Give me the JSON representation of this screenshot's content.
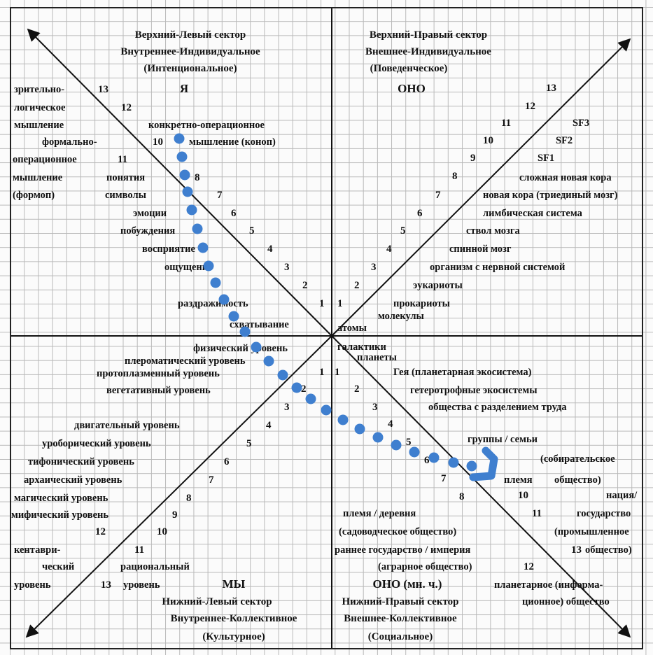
{
  "colors": {
    "ink": "#111111",
    "dots": "#3f7fcf",
    "grid": "#b9b9b9"
  },
  "sectors": {
    "ul": {
      "line1": "Верхний-Левый сектор",
      "line2": "Внутреннее-Индивидуальное",
      "line3": "(Интенциональное)",
      "pronoun": "Я"
    },
    "ur": {
      "line1": "Верхний-Правый сектор",
      "line2": "Внешнее-Индивидуальное",
      "line3": "(Поведенческое)",
      "pronoun": "ОНО"
    },
    "ll": {
      "line1": "Нижний-Левый сектор",
      "line2": "Внутреннее-Коллективное",
      "line3": "(Культурное)",
      "pronoun": "МЫ"
    },
    "lr": {
      "line1": "Нижний-Правый сектор",
      "line2": "Внешнее-Коллективное",
      "line3": "(Социальное)",
      "pronoun": "ОНО (мн. ч.)"
    }
  },
  "ul_labels": {
    "vision1": "зрительно-",
    "vision2": "логическое",
    "vision3": "мышление",
    "formop1": "формально-",
    "formop2": "операционное",
    "formop3": "мышление",
    "formop4": "(формоп)",
    "concop1": "конкретно-операционное",
    "concop2": "мышление (коноп)",
    "concepts": "понятия",
    "symbols": "символы",
    "emotions": "эмоции",
    "impulses": "побуждения",
    "perception": "восприятие",
    "sensation": "ощущение",
    "irritability": "раздражимость",
    "prehension": "схватывание"
  },
  "ur_labels": {
    "sf3": "SF3",
    "sf2": "SF2",
    "sf1": "SF1",
    "neocortex_complex": "сложная новая кора",
    "neocortex": "новая кора (триединый мозг)",
    "limbic": "лимбическая система",
    "brainstem": "ствол мозга",
    "spinal": "спинной мозг",
    "organism": "организм с нервной системой",
    "eukaryotes": "эукариоты",
    "prokaryotes": "прокариоты",
    "molecules": "молекулы",
    "atoms": "атомы"
  },
  "ll_labels": {
    "physical": "физический уровень",
    "pleromatic": "плероматический уровень",
    "protoplasmic": "протоплазменный уровень",
    "vegetative": "вегетативный уровень",
    "locomotive": "двигательный уровень",
    "uroboric": "уроборический уровень",
    "typhonic": "тифонический уровень",
    "archaic": "архаический уровень",
    "magic": "магический уровень",
    "mythic": "мифический уровень",
    "centaur1": "кентаври-",
    "centaur2": "ческий",
    "centaur3": "уровень",
    "rational1": "рациональный",
    "rational2": "уровень"
  },
  "lr_labels": {
    "galaxies": "галактики",
    "planets": "планеты",
    "gaia": "Гея (планетарная экосистема)",
    "hetero1": "гетеротрофные экосистемы",
    "hetero2": "общества с разделением труда",
    "groups": "группы / семьи",
    "forager1": "(собирательское",
    "tribe": "племя",
    "forager2": "общество)",
    "village1": "племя / деревня",
    "village2": "(садоводческое общество)",
    "nation1": "нация/",
    "nation2": "государство",
    "nation3": "(промышленное",
    "nation4": "общество)",
    "empire1": "раннее государство / империя",
    "empire2": "(аграрное общество)",
    "planetary1": "планетарное (информа-",
    "planetary2": "ционное) общество"
  },
  "numbers": {
    "n1": "1",
    "n2": "2",
    "n3": "3",
    "n4": "4",
    "n5": "5",
    "n6": "6",
    "n7": "7",
    "n8": "8",
    "n9": "9",
    "n10": "10",
    "n11": "11",
    "n12": "12",
    "n13": "13"
  }
}
